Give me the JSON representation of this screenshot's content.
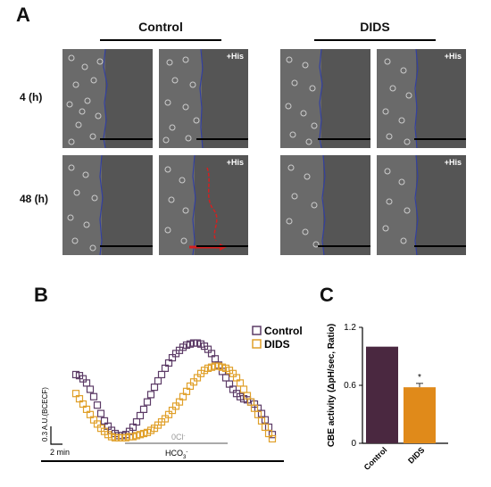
{
  "figure": {
    "panel_a": {
      "letter": "A",
      "groups": [
        {
          "name": "Control"
        },
        {
          "name": "DIDS"
        }
      ],
      "row_labels": [
        "4 (h)",
        "48 (h)"
      ],
      "his_label": "+His"
    },
    "panel_b": {
      "letter": "B",
      "legend": [
        {
          "label": "Control",
          "color": "#5c3b66"
        },
        {
          "label": "DIDS",
          "color": "#e0a02a"
        }
      ],
      "scale_label": "0.3 A.U.(BCECF)",
      "time_label": "2 min",
      "solution_bars": [
        {
          "label": "0Cl",
          "superscript": "-",
          "color": "#aaaaaa"
        },
        {
          "label": "HCO",
          "subscript": "3",
          "superscript": "-",
          "color": "#000000"
        }
      ]
    },
    "panel_c": {
      "letter": "C",
      "ylabel": "CBE activity (ΔpH/sec, Ratio)",
      "star": "*"
    }
  },
  "chart_data": [
    {
      "type": "scatter",
      "panel": "B",
      "series": [
        {
          "name": "Control",
          "color": "#5c3b66",
          "x": [
            0,
            4,
            8,
            12,
            16,
            20,
            24,
            28,
            32,
            36,
            40,
            44,
            48,
            52,
            56,
            60,
            64,
            68,
            72,
            76,
            80,
            84,
            88,
            92,
            96,
            100,
            104,
            108,
            112,
            116,
            120,
            124,
            128,
            132,
            136,
            140,
            144,
            148,
            152,
            156,
            160,
            164,
            168,
            172,
            176,
            180,
            184,
            188,
            192,
            196,
            200,
            204,
            208,
            212,
            216,
            220
          ],
          "y": [
            0.78,
            0.77,
            0.74,
            0.7,
            0.64,
            0.57,
            0.49,
            0.41,
            0.34,
            0.29,
            0.25,
            0.22,
            0.2,
            0.2,
            0.21,
            0.24,
            0.28,
            0.33,
            0.39,
            0.45,
            0.52,
            0.59,
            0.66,
            0.72,
            0.78,
            0.84,
            0.89,
            0.94,
            0.98,
            1.01,
            1.04,
            1.06,
            1.07,
            1.08,
            1.08,
            1.07,
            1.05,
            1.02,
            0.98,
            0.93,
            0.87,
            0.81,
            0.75,
            0.69,
            0.64,
            0.6,
            0.57,
            0.55,
            0.54,
            0.52,
            0.5,
            0.46,
            0.41,
            0.35,
            0.28,
            0.21
          ]
        },
        {
          "name": "DIDS",
          "color": "#e0a02a",
          "x": [
            0,
            4,
            8,
            12,
            16,
            20,
            24,
            28,
            32,
            36,
            40,
            44,
            48,
            52,
            56,
            60,
            64,
            68,
            72,
            76,
            80,
            84,
            88,
            92,
            96,
            100,
            104,
            108,
            112,
            116,
            120,
            124,
            128,
            132,
            136,
            140,
            144,
            148,
            152,
            156,
            160,
            164,
            168,
            172,
            176,
            180,
            184,
            188,
            192,
            196,
            200,
            204,
            208,
            212,
            216,
            220
          ],
          "y": [
            0.6,
            0.55,
            0.5,
            0.45,
            0.4,
            0.35,
            0.31,
            0.27,
            0.24,
            0.21,
            0.19,
            0.18,
            0.18,
            0.18,
            0.18,
            0.19,
            0.19,
            0.2,
            0.21,
            0.22,
            0.23,
            0.25,
            0.27,
            0.3,
            0.33,
            0.36,
            0.4,
            0.44,
            0.48,
            0.52,
            0.57,
            0.62,
            0.67,
            0.71,
            0.75,
            0.79,
            0.82,
            0.84,
            0.85,
            0.86,
            0.86,
            0.85,
            0.84,
            0.82,
            0.79,
            0.75,
            0.7,
            0.64,
            0.58,
            0.52,
            0.46,
            0.4,
            0.34,
            0.28,
            0.22,
            0.17
          ]
        }
      ]
    },
    {
      "type": "bar",
      "panel": "C",
      "categories": [
        "Control",
        "DIDS"
      ],
      "values": [
        1.0,
        0.58
      ],
      "errors": [
        0,
        0.04
      ],
      "colors": [
        "#4a2840",
        "#e08a1a"
      ],
      "yticks": [
        "0",
        "0.6",
        "1.2"
      ],
      "ylim": [
        0,
        1.2
      ],
      "ylabel": "CBE activity (ΔpH/sec, Ratio)"
    }
  ]
}
